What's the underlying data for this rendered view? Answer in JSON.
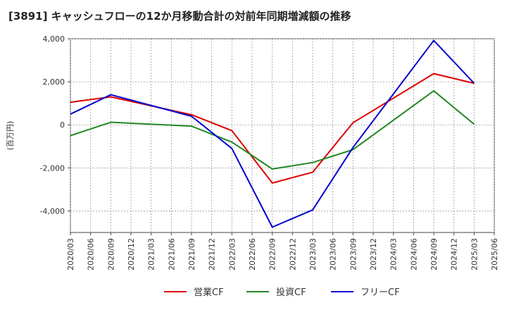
{
  "title": "[3891]  キャッシュフローの12か月移動合計の対前年同期増減額の推移",
  "chart_data": {
    "type": "line",
    "title": "[3891]  キャッシュフローの12か月移動合計の対前年同期増減額の推移",
    "ylabel": "(百万円)",
    "xlabel": "",
    "ylim": [
      -5000,
      4000
    ],
    "yticks": [
      4000,
      2000,
      0,
      -2000,
      -4000
    ],
    "ytick_labels": [
      "4,000",
      "2,000",
      "0",
      "-2,000",
      "-4,000"
    ],
    "x": [
      "2020/03",
      "2020/06",
      "2020/09",
      "2020/12",
      "2021/03",
      "2021/06",
      "2021/09",
      "2021/12",
      "2022/03",
      "2022/06",
      "2022/09",
      "2022/12",
      "2023/03",
      "2023/06",
      "2023/09",
      "2023/12",
      "2024/03",
      "2024/06",
      "2024/09",
      "2024/12",
      "2025/03",
      "2025/06"
    ],
    "grid": true,
    "legend_position": "bottom",
    "series": [
      {
        "name": "営業CF",
        "color": "#dd0000",
        "values": [
          1050,
          null,
          1300,
          null,
          null,
          null,
          470,
          null,
          -270,
          null,
          -2700,
          null,
          -2200,
          null,
          100,
          null,
          null,
          null,
          2380,
          null,
          1930,
          null
        ]
      },
      {
        "name": "投資CF",
        "color": "#228822",
        "values": [
          -500,
          null,
          120,
          null,
          null,
          null,
          -60,
          null,
          -800,
          null,
          -2050,
          null,
          -1750,
          null,
          -1150,
          null,
          null,
          null,
          1580,
          null,
          30,
          null
        ]
      },
      {
        "name": "フリーCF",
        "color": "#0000cc",
        "values": [
          500,
          null,
          1400,
          null,
          null,
          null,
          400,
          null,
          -1100,
          null,
          -4750,
          null,
          -3950,
          null,
          -1050,
          null,
          null,
          null,
          3920,
          null,
          1930,
          null
        ]
      }
    ]
  }
}
